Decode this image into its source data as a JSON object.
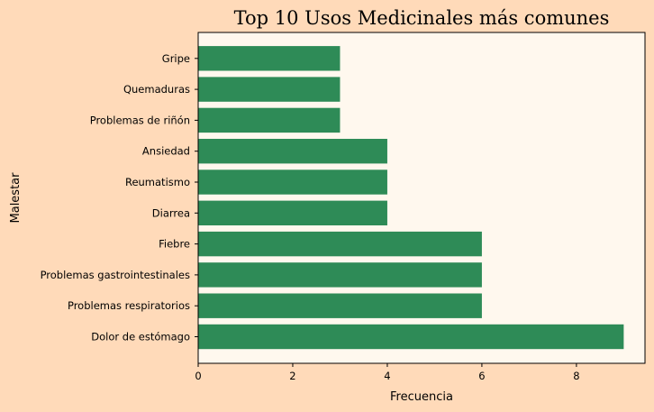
{
  "chart_data": {
    "type": "bar",
    "orientation": "horizontal",
    "title": "Top 10 Usos Medicinales más comunes",
    "xlabel": "Frecuencia",
    "ylabel": "Malestar",
    "categories": [
      "Dolor de estómago",
      "Problemas respiratorios",
      "Problemas gastrointestinales",
      "Fiebre",
      "Diarrea",
      "Reumatismo",
      "Ansiedad",
      "Problemas de riñón",
      "Quemaduras",
      "Gripe"
    ],
    "values": [
      9,
      6,
      6,
      6,
      4,
      4,
      4,
      3,
      3,
      3
    ],
    "xlim": [
      0,
      9.45
    ],
    "xticks": [
      0,
      2,
      4,
      6,
      8
    ],
    "grid": false,
    "colors": {
      "bar": "#2E8B57",
      "plot_background": "#FFF8EE",
      "figure_background": "#FFDAB9"
    }
  }
}
